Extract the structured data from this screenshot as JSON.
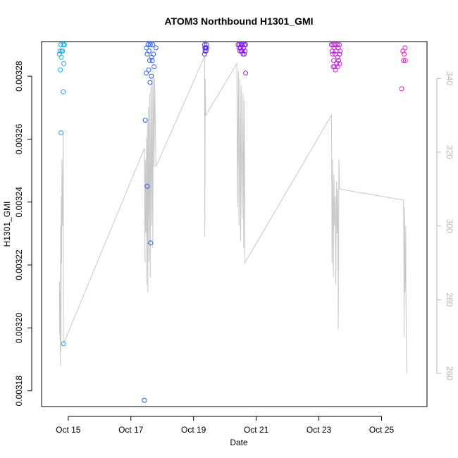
{
  "chart_data": {
    "type": "scatter",
    "title": "ATOM3 Northbound H1301_GMI",
    "xlabel": "Date",
    "ylabel": "H1301_GMI",
    "xlim": [
      14.15,
      26.45
    ],
    "ylim": [
      0.003175,
      0.003291
    ],
    "y2lim": [
      251,
      350
    ],
    "x_ticks": [
      {
        "value": 15,
        "label": "Oct 15"
      },
      {
        "value": 17,
        "label": "Oct 17"
      },
      {
        "value": 19,
        "label": "Oct 19"
      },
      {
        "value": 21,
        "label": "Oct 21"
      },
      {
        "value": 23,
        "label": "Oct 23"
      },
      {
        "value": 25,
        "label": "Oct 25"
      }
    ],
    "y_ticks": [
      {
        "value": 0.00318,
        "label": "0.00318"
      },
      {
        "value": 0.0032,
        "label": "0.00320"
      },
      {
        "value": 0.00322,
        "label": "0.00322"
      },
      {
        "value": 0.00324,
        "label": "0.00324"
      },
      {
        "value": 0.00326,
        "label": "0.00326"
      },
      {
        "value": 0.00328,
        "label": "0.00328"
      }
    ],
    "y2_ticks": [
      {
        "value": 260,
        "label": "260"
      },
      {
        "value": 280,
        "label": "280"
      },
      {
        "value": 300,
        "label": "300"
      },
      {
        "value": 320,
        "label": "320"
      },
      {
        "value": 340,
        "label": "340"
      }
    ],
    "grid": false,
    "series": [
      {
        "color": "#1aa6e6",
        "points": [
          [
            14.72,
            0.003287
          ],
          [
            14.76,
            0.00329
          ],
          [
            14.8,
            0.003288
          ],
          [
            14.84,
            0.00329
          ],
          [
            14.74,
            0.003288
          ],
          [
            14.82,
            0.003288
          ],
          [
            14.88,
            0.00329
          ],
          [
            14.78,
            0.003286
          ],
          [
            14.75,
            0.003282
          ],
          [
            14.86,
            0.003284
          ],
          [
            14.84,
            0.003275
          ],
          [
            14.77,
            0.003262
          ],
          [
            14.85,
            0.003195
          ]
        ]
      },
      {
        "color": "#2a5fe6",
        "points": [
          [
            17.5,
            0.003289
          ],
          [
            17.55,
            0.00329
          ],
          [
            17.62,
            0.00329
          ],
          [
            17.7,
            0.00329
          ],
          [
            17.52,
            0.003287
          ],
          [
            17.58,
            0.003288
          ],
          [
            17.66,
            0.003286
          ],
          [
            17.72,
            0.003287
          ],
          [
            17.8,
            0.003289
          ],
          [
            17.6,
            0.003285
          ],
          [
            17.68,
            0.003285
          ],
          [
            17.74,
            0.003283
          ],
          [
            17.49,
            0.003281
          ],
          [
            17.57,
            0.003282
          ],
          [
            17.65,
            0.00328
          ],
          [
            17.61,
            0.003278
          ],
          [
            17.46,
            0.003266
          ],
          [
            17.52,
            0.003245
          ],
          [
            17.63,
            0.003227
          ],
          [
            17.43,
            0.003177
          ]
        ]
      },
      {
        "color": "#5a2fe6",
        "points": [
          [
            19.35,
            0.00329
          ],
          [
            19.38,
            0.003289
          ],
          [
            19.41,
            0.00329
          ],
          [
            19.36,
            0.003289
          ],
          [
            19.4,
            0.003288
          ],
          [
            19.37,
            0.003288
          ],
          [
            19.39,
            0.003289
          ],
          [
            19.42,
            0.003289
          ],
          [
            19.35,
            0.003287
          ]
        ]
      },
      {
        "color": "#8c1ae6",
        "points": [
          [
            20.42,
            0.00329
          ],
          [
            20.47,
            0.00329
          ],
          [
            20.52,
            0.00329
          ],
          [
            20.57,
            0.00329
          ],
          [
            20.62,
            0.00329
          ],
          [
            20.66,
            0.00329
          ],
          [
            20.45,
            0.003289
          ],
          [
            20.5,
            0.003289
          ],
          [
            20.55,
            0.003288
          ],
          [
            20.6,
            0.003289
          ],
          [
            20.64,
            0.003288
          ],
          [
            20.48,
            0.003288
          ],
          [
            20.58,
            0.003287
          ],
          [
            20.62,
            0.003287
          ],
          [
            20.53,
            0.003288
          ],
          [
            20.66,
            0.003281
          ]
        ]
      },
      {
        "color": "#bf1ad9",
        "points": [
          [
            23.4,
            0.00329
          ],
          [
            23.45,
            0.00329
          ],
          [
            23.5,
            0.00329
          ],
          [
            23.58,
            0.00329
          ],
          [
            23.65,
            0.00329
          ],
          [
            23.42,
            0.003288
          ],
          [
            23.48,
            0.003289
          ],
          [
            23.55,
            0.003288
          ],
          [
            23.62,
            0.003289
          ],
          [
            23.68,
            0.003288
          ],
          [
            23.44,
            0.003287
          ],
          [
            23.52,
            0.003287
          ],
          [
            23.6,
            0.003286
          ],
          [
            23.66,
            0.003287
          ],
          [
            23.47,
            0.003285
          ],
          [
            23.57,
            0.003284
          ],
          [
            23.63,
            0.003285
          ],
          [
            23.5,
            0.003283
          ],
          [
            23.6,
            0.003283
          ],
          [
            23.53,
            0.003282
          ],
          [
            23.46,
            0.003283
          ],
          [
            23.66,
            0.003284
          ]
        ]
      },
      {
        "color": "#e61ad0",
        "points": [
          [
            25.75,
            0.003289
          ],
          [
            25.68,
            0.003288
          ],
          [
            25.72,
            0.003287
          ],
          [
            25.7,
            0.003285
          ],
          [
            25.76,
            0.003285
          ],
          [
            25.64,
            0.003276
          ]
        ]
      }
    ],
    "line_series": {
      "color": "#c8c8c8",
      "axis": "right",
      "points": [
        [
          14.72,
          285
        ],
        [
          14.73,
          270
        ],
        [
          14.74,
          282
        ],
        [
          14.75,
          262
        ],
        [
          14.76,
          300
        ],
        [
          14.77,
          266
        ],
        [
          14.78,
          308
        ],
        [
          14.79,
          290
        ],
        [
          14.8,
          318
        ],
        [
          14.82,
          300
        ],
        [
          14.84,
          325
        ],
        [
          14.85,
          268
        ],
        [
          17.43,
          321
        ],
        [
          17.45,
          290
        ],
        [
          17.46,
          318
        ],
        [
          17.48,
          298
        ],
        [
          17.5,
          324
        ],
        [
          17.51,
          284
        ],
        [
          17.53,
          328
        ],
        [
          17.54,
          282
        ],
        [
          17.56,
          332
        ],
        [
          17.58,
          290
        ],
        [
          17.6,
          336
        ],
        [
          17.62,
          286
        ],
        [
          17.64,
          338
        ],
        [
          17.66,
          300
        ],
        [
          17.68,
          340
        ],
        [
          17.7,
          294
        ],
        [
          17.72,
          342
        ],
        [
          17.74,
          316
        ],
        [
          17.76,
          340
        ],
        [
          17.8,
          316
        ],
        [
          19.35,
          346
        ],
        [
          19.36,
          297
        ],
        [
          19.37,
          340
        ],
        [
          19.39,
          330
        ],
        [
          20.38,
          344
        ],
        [
          20.4,
          305
        ],
        [
          20.43,
          342
        ],
        [
          20.45,
          300
        ],
        [
          20.48,
          340
        ],
        [
          20.5,
          296
        ],
        [
          20.52,
          338
        ],
        [
          20.55,
          302
        ],
        [
          20.58,
          336
        ],
        [
          20.6,
          294
        ],
        [
          20.62,
          334
        ],
        [
          20.64,
          290
        ],
        [
          23.4,
          330
        ],
        [
          23.42,
          290
        ],
        [
          23.44,
          318
        ],
        [
          23.46,
          286
        ],
        [
          23.48,
          314
        ],
        [
          23.5,
          300
        ],
        [
          23.52,
          308
        ],
        [
          23.54,
          284
        ],
        [
          23.56,
          312
        ],
        [
          23.58,
          298
        ],
        [
          23.6,
          310
        ],
        [
          23.62,
          272
        ],
        [
          23.64,
          318
        ],
        [
          23.66,
          310
        ],
        [
          25.7,
          307
        ],
        [
          25.71,
          298
        ],
        [
          25.72,
          270
        ],
        [
          25.73,
          305
        ],
        [
          25.75,
          282
        ],
        [
          25.77,
          300
        ],
        [
          25.78,
          280
        ],
        [
          25.8,
          260
        ]
      ]
    }
  }
}
